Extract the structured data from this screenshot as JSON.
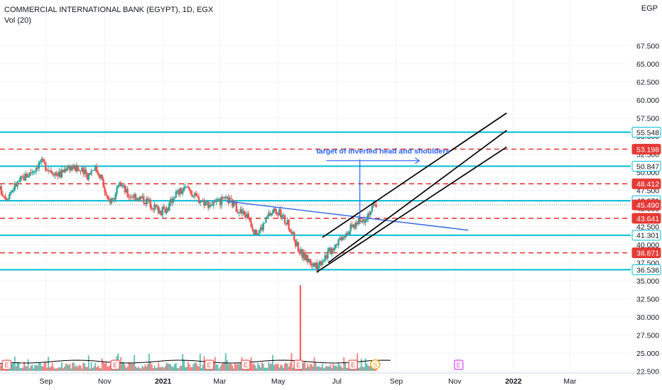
{
  "header": {
    "title": "COMMERCIAL INTERNATIONAL BANK (EGYPT), 1D, EGX",
    "volume_label": "Vol (20)",
    "currency": "EGP"
  },
  "colors": {
    "up": "#26a69a",
    "down": "#ef5350",
    "support_line": "#00bcd4",
    "dashed_line": "#e53935",
    "neckline": "#3d6fe0",
    "annotation": "#2962ff",
    "channel": "#000000",
    "grid": "#f0f3fa",
    "axis_text": "#131722"
  },
  "annotation": {
    "text": "target of inverted head and shoulders"
  },
  "earnings_badge": "E",
  "split_badge": "S",
  "chart_data": {
    "type": "candlestick",
    "symbol": "COMMERCIAL INTERNATIONAL BANK (EGYPT)",
    "interval": "1D",
    "exchange": "EGX",
    "title": "COMMERCIAL INTERNATIONAL BANK (EGYPT), 1D, EGX",
    "price_axis": {
      "ticks": [
        "67.500",
        "65.000",
        "62.500",
        "60.000",
        "57.500",
        "55.000",
        "52.500",
        "50.000",
        "47.500",
        "45.000",
        "42.500",
        "40.000",
        "37.500",
        "35.000",
        "32.500",
        "30.000",
        "27.500",
        "25.000",
        "22.500"
      ],
      "tick_values": [
        67.5,
        65.0,
        62.5,
        60.0,
        57.5,
        55.0,
        52.5,
        50.0,
        47.5,
        45.0,
        42.5,
        40.0,
        37.5,
        35.0,
        32.5,
        30.0,
        27.5,
        25.0,
        22.5
      ],
      "ylim": [
        21.5,
        70.0
      ]
    },
    "time_axis": {
      "ticks": [
        "Sep",
        "Nov",
        "2021",
        "Mar",
        "May",
        "Jul",
        "Sep",
        "Nov",
        "2022",
        "Mar"
      ],
      "xlim": [
        "2020-07-15",
        "2022-04-20"
      ]
    },
    "price_labels": [
      {
        "value": "55.548",
        "kind": "solid"
      },
      {
        "value": "53.198",
        "kind": "dashed"
      },
      {
        "value": "50.847",
        "kind": "solid"
      },
      {
        "value": "48.412",
        "kind": "dashed"
      },
      {
        "value": "46.071",
        "kind": "solid"
      },
      {
        "value": "45.490",
        "kind": "last"
      },
      {
        "value": "43.641",
        "kind": "dashed"
      },
      {
        "value": "41.301",
        "kind": "solid"
      },
      {
        "value": "38.871",
        "kind": "dashed"
      },
      {
        "value": "36.536",
        "kind": "solid"
      }
    ],
    "horizontal_levels": {
      "solid": [
        55.548,
        50.847,
        46.071,
        41.301,
        36.536
      ],
      "dashed": [
        53.198,
        48.412,
        43.641,
        38.871
      ]
    },
    "last_price": 45.49,
    "price_path": [
      [
        "2020-07-15",
        47.6
      ],
      [
        "2020-07-22",
        46.6
      ],
      [
        "2020-07-29",
        47.9
      ],
      [
        "2020-08-05",
        48.9
      ],
      [
        "2020-08-12",
        49.6
      ],
      [
        "2020-08-19",
        50.4
      ],
      [
        "2020-08-26",
        51.5
      ],
      [
        "2020-09-02",
        50.7
      ],
      [
        "2020-09-09",
        50.1
      ],
      [
        "2020-09-16",
        49.7
      ],
      [
        "2020-09-23",
        50.9
      ],
      [
        "2020-09-30",
        50.6
      ],
      [
        "2020-10-07",
        50.2
      ],
      [
        "2020-10-14",
        49.6
      ],
      [
        "2020-10-21",
        50.8
      ],
      [
        "2020-10-28",
        49.5
      ],
      [
        "2020-11-04",
        45.9
      ],
      [
        "2020-11-11",
        46.6
      ],
      [
        "2020-11-18",
        48.4
      ],
      [
        "2020-11-25",
        46.9
      ],
      [
        "2020-12-02",
        46.8
      ],
      [
        "2020-12-09",
        46.4
      ],
      [
        "2020-12-16",
        46.0
      ],
      [
        "2020-12-23",
        45.2
      ],
      [
        "2020-12-30",
        44.6
      ],
      [
        "2021-01-06",
        45.1
      ],
      [
        "2021-01-13",
        47.0
      ],
      [
        "2021-01-20",
        47.4
      ],
      [
        "2021-01-27",
        47.9
      ],
      [
        "2021-02-03",
        46.6
      ],
      [
        "2021-02-10",
        46.1
      ],
      [
        "2021-02-17",
        45.7
      ],
      [
        "2021-02-24",
        45.6
      ],
      [
        "2021-03-03",
        46.0
      ],
      [
        "2021-03-10",
        46.2
      ],
      [
        "2021-03-17",
        45.3
      ],
      [
        "2021-03-24",
        44.4
      ],
      [
        "2021-03-31",
        43.9
      ],
      [
        "2021-04-07",
        41.5
      ],
      [
        "2021-04-14",
        42.4
      ],
      [
        "2021-04-21",
        44.1
      ],
      [
        "2021-04-28",
        44.9
      ],
      [
        "2021-05-05",
        43.9
      ],
      [
        "2021-05-12",
        42.6
      ],
      [
        "2021-05-19",
        40.3
      ],
      [
        "2021-05-26",
        38.6
      ],
      [
        "2021-06-02",
        37.8
      ],
      [
        "2021-06-09",
        36.9
      ],
      [
        "2021-06-16",
        38.0
      ],
      [
        "2021-06-23",
        39.0
      ],
      [
        "2021-06-30",
        40.2
      ],
      [
        "2021-07-07",
        41.4
      ],
      [
        "2021-07-14",
        42.1
      ],
      [
        "2021-07-21",
        42.9
      ],
      [
        "2021-07-28",
        43.4
      ],
      [
        "2021-08-04",
        44.6
      ],
      [
        "2021-08-11",
        45.5
      ]
    ],
    "volume_spike": {
      "date": "2021-05-24",
      "value": 34.4
    },
    "volume_moving_average": "Vol (20)",
    "trendlines": [
      {
        "name": "neckline",
        "from": [
          "2021-03-08",
          46.0
        ],
        "to": [
          "2021-11-15",
          42.0
        ]
      },
      {
        "name": "channel-upper",
        "from": [
          "2021-06-16",
          41.0
        ],
        "to": [
          "2021-12-25",
          58.2
        ]
      },
      {
        "name": "channel-middle",
        "from": [
          "2021-06-22",
          37.5
        ],
        "to": [
          "2021-12-25",
          55.8
        ]
      },
      {
        "name": "channel-lower",
        "from": [
          "2021-06-10",
          36.2
        ],
        "to": [
          "2021-12-25",
          53.5
        ]
      },
      {
        "name": "target-vertical",
        "from": [
          "2021-07-25",
          43.6
        ],
        "to": [
          "2021-07-25",
          51.8
        ]
      },
      {
        "name": "target-horizontal",
        "from": [
          "2021-06-20",
          51.6
        ],
        "to": [
          "2021-09-25",
          51.6
        ]
      }
    ],
    "earnings_marker_dates": [
      "2020-07-22",
      "2020-11-12",
      "2021-02-18",
      "2021-03-28",
      "2021-05-22",
      "2021-07-18",
      "2021-11-05"
    ],
    "split_marker_date": "2021-08-10"
  }
}
